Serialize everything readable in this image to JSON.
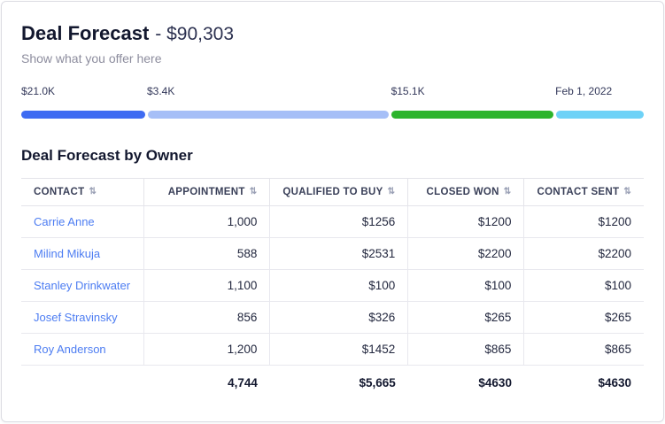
{
  "header": {
    "title": "Deal Forecast",
    "amount_suffix": "- $90,303",
    "subtitle": "Show what you offer here"
  },
  "progress": {
    "segments": [
      {
        "label": "$21.0K",
        "color": "#3e6bf2",
        "width_pct": 20.2,
        "offset_pct": 0
      },
      {
        "label": "$3.4K",
        "color": "#a6bff7",
        "width_pct": 39.2,
        "offset_pct": 20.2
      },
      {
        "label": "$15.1K",
        "color": "#2cb42c",
        "width_pct": 26.4,
        "offset_pct": 59.4
      },
      {
        "label": "Feb 1, 2022",
        "color": "#6ed2f7",
        "width_pct": 14.2,
        "offset_pct": 85.8
      }
    ]
  },
  "section": {
    "title": "Deal Forecast by Owner"
  },
  "table": {
    "sort_icon": "⇅",
    "columns": [
      {
        "label": "CONTACT"
      },
      {
        "label": "APPOINTMENT"
      },
      {
        "label": "QUALIFIED TO BUY"
      },
      {
        "label": "CLOSED WON"
      },
      {
        "label": "CONTACT SENT"
      }
    ],
    "rows": [
      {
        "contact": "Carrie Anne",
        "appointment": "1,000",
        "qualified_to_buy": "$1256",
        "closed_won": "$1200",
        "contact_sent": "$1200"
      },
      {
        "contact": "Milind Mikuja",
        "appointment": "588",
        "qualified_to_buy": "$2531",
        "closed_won": "$2200",
        "contact_sent": "$2200"
      },
      {
        "contact": "Stanley Drinkwater",
        "appointment": "1,100",
        "qualified_to_buy": "$100",
        "closed_won": "$100",
        "contact_sent": "$100"
      },
      {
        "contact": "Josef Stravinsky",
        "appointment": "856",
        "qualified_to_buy": "$326",
        "closed_won": "$265",
        "contact_sent": "$265"
      },
      {
        "contact": "Roy Anderson",
        "appointment": "1,200",
        "qualified_to_buy": "$1452",
        "closed_won": "$865",
        "contact_sent": "$865"
      }
    ],
    "totals": {
      "appointment": "4,744",
      "qualified_to_buy": "$5,665",
      "closed_won": "$4630",
      "contact_sent": "$4630"
    }
  }
}
